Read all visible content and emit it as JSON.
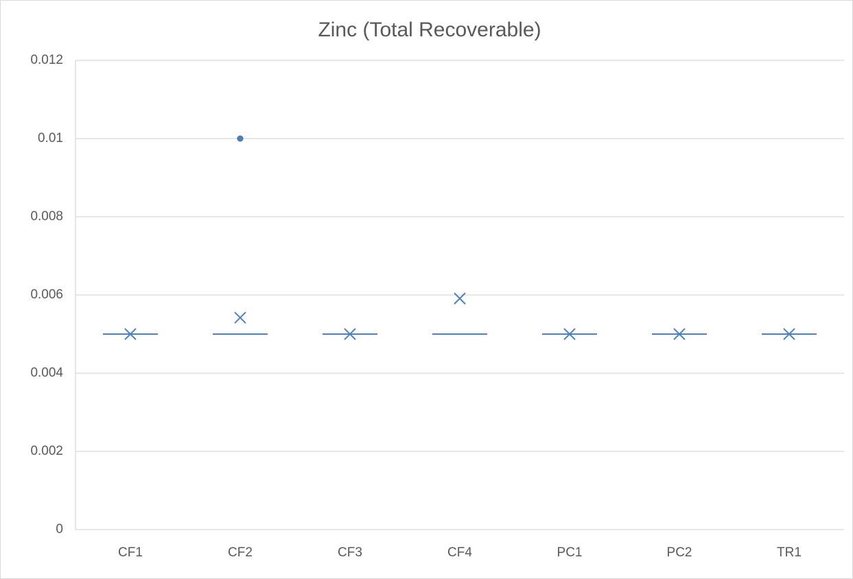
{
  "chart_data": {
    "type": "box",
    "title": "Zinc (Total Recoverable)",
    "categories": [
      "CF1",
      "CF2",
      "CF3",
      "CF4",
      "PC1",
      "PC2",
      "TR1"
    ],
    "color": "#4f81bd",
    "median": [
      0.005,
      0.005,
      0.005,
      0.005,
      0.005,
      0.005,
      0.005
    ],
    "mean": [
      0.005,
      0.00542,
      0.005,
      0.00591,
      0.005,
      0.005,
      0.005
    ],
    "outliers": [
      [],
      [
        0.01
      ],
      [],
      [],
      [],
      [],
      []
    ],
    "ylim": [
      0,
      0.012
    ],
    "yticks": [
      0,
      0.002,
      0.004,
      0.006,
      0.008,
      0.01,
      0.012
    ],
    "grid": true
  }
}
